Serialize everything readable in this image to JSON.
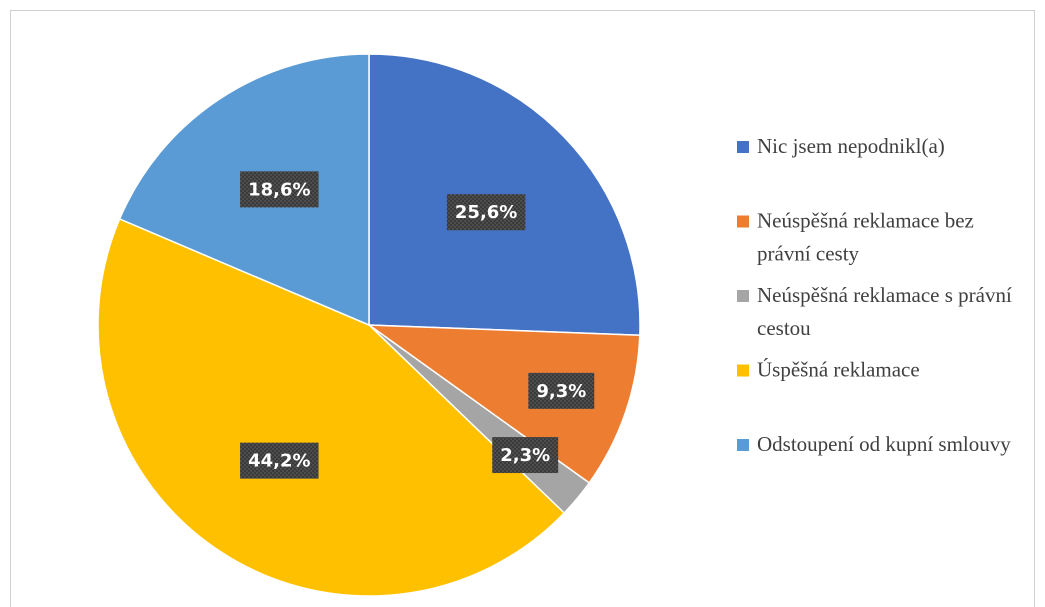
{
  "chart_data": {
    "type": "pie",
    "categories": [
      "Nic jsem nepodnikl(a)",
      "Neúspěšná reklamace bez právní cesty",
      "Neúspěšná reklamace s právní cestou",
      "Úspěšná reklamace",
      "Odstoupení od kupní smlouvy"
    ],
    "values": [
      25.6,
      9.3,
      2.3,
      44.2,
      18.6
    ],
    "value_labels": [
      "25,6%",
      "9,3%",
      "2,3%",
      "44,2%",
      "18,6%"
    ],
    "colors": [
      "#4472c4",
      "#ed7d31",
      "#a5a5a5",
      "#ffc000",
      "#5b9bd5"
    ],
    "legend": "right"
  }
}
